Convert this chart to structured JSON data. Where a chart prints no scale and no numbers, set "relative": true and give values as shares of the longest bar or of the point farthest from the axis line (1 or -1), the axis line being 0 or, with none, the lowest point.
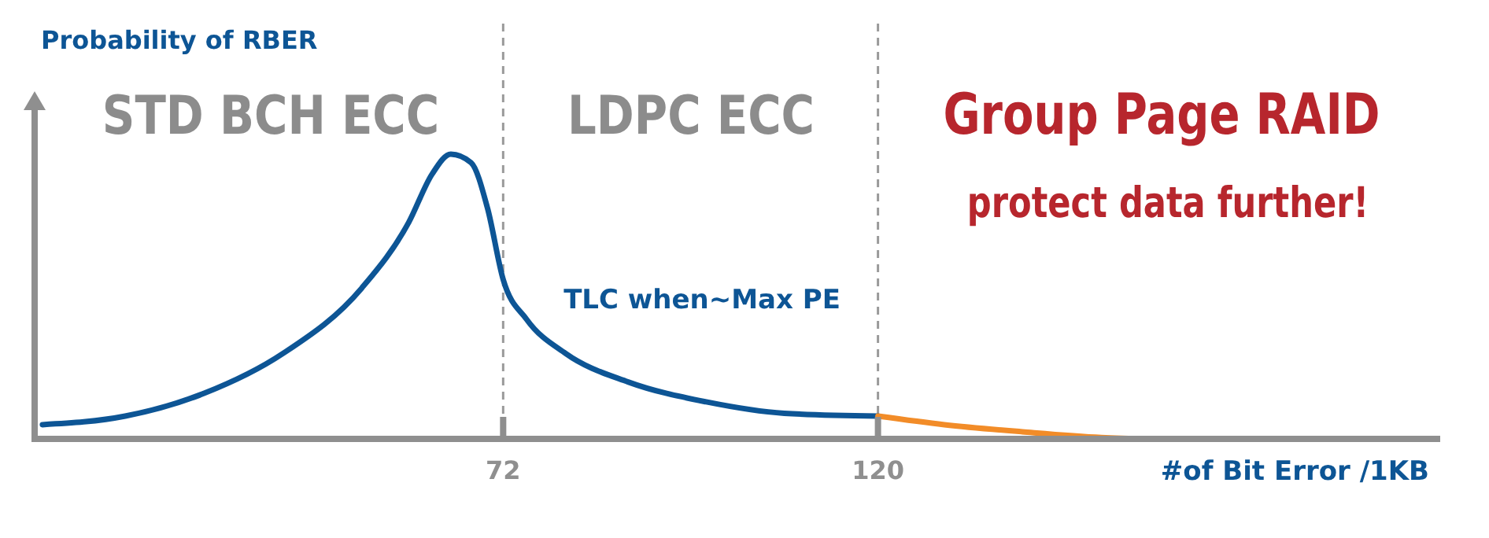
{
  "chart_data": {
    "type": "line",
    "relative": true,
    "ylabel": "Probability of RBER",
    "xlabel": "#of Bit Error /1KB",
    "xlim": [
      12,
      192
    ],
    "xticks": [
      72,
      120
    ],
    "marker": "none",
    "line_style": "solid",
    "series": [
      {
        "color": "#0d5595",
        "x": [
          13,
          23.6,
          33.7,
          43.8,
          53.9,
          59.9,
          62.9,
          65.3,
          67.9,
          70,
          72,
          75,
          80,
          88,
          98,
          108,
          120
        ],
        "values": [
          0.05,
          0.08,
          0.16,
          0.3,
          0.53,
          0.76,
          0.93,
          1,
          0.97,
          0.81,
          0.56,
          0.42,
          0.3,
          0.2,
          0.13,
          0.09,
          0.08
        ]
      },
      {
        "color": "#f28c28",
        "x": [
          120,
          128.5,
          138.5,
          148.6,
          155
        ],
        "values": [
          0.08,
          0.05,
          0.025,
          0.005,
          0
        ]
      }
    ],
    "ref_lines": [
      {
        "axis": "x",
        "value": 72,
        "line_style": "dashed",
        "color": "#9a9a9a"
      },
      {
        "axis": "x",
        "value": 120,
        "line_style": "dashed",
        "color": "#9a9a9a"
      }
    ],
    "annotations": [
      "STD BCH ECC",
      "LDPC ECC",
      "Group Page RAID",
      "protect data further!",
      "TLC when~Max PE"
    ]
  }
}
